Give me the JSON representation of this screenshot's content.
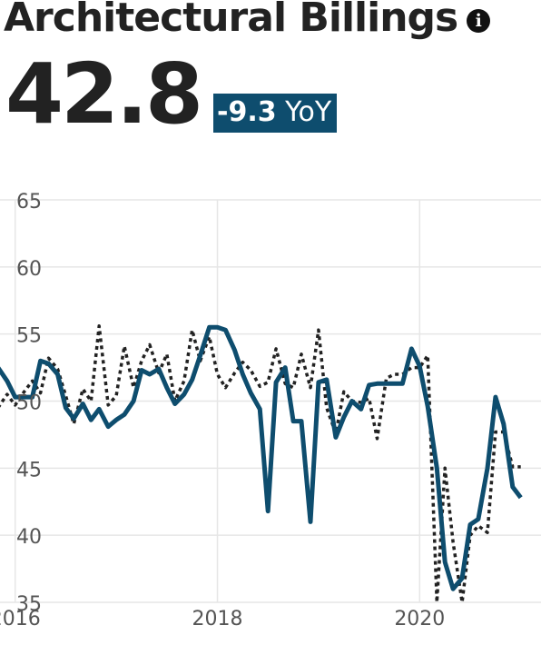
{
  "header": {
    "title": "Architectural Billings",
    "info_icon": "info-circle-icon",
    "value": "42.8",
    "change_value": "-9.3",
    "change_label": "YoY"
  },
  "colors": {
    "primary_line": "#0e4d6e",
    "secondary_line": "#222222",
    "badge_bg": "#0e4d6e",
    "grid": "#e6e6e6"
  },
  "chart_data": {
    "type": "line",
    "title": "",
    "xlabel": "",
    "ylabel": "",
    "ylim": [
      35,
      65
    ],
    "xlim": [
      2015.85,
      2021.2
    ],
    "grid": true,
    "yticks": [
      35,
      40,
      45,
      50,
      55,
      60,
      65
    ],
    "xticks": [
      2016,
      2018,
      2020
    ],
    "series": [
      {
        "style": "solid",
        "x": [
          2015.83,
          2015.92,
          2016.0,
          2016.08,
          2016.17,
          2016.25,
          2016.33,
          2016.42,
          2016.5,
          2016.58,
          2016.67,
          2016.75,
          2016.83,
          2016.92,
          2017.0,
          2017.08,
          2017.17,
          2017.25,
          2017.33,
          2017.42,
          2017.5,
          2017.58,
          2017.67,
          2017.75,
          2017.83,
          2017.92,
          2018.0,
          2018.08,
          2018.17,
          2018.25,
          2018.33,
          2018.42,
          2018.5,
          2018.58,
          2018.67,
          2018.75,
          2018.83,
          2018.92,
          2019.0,
          2019.08,
          2019.17,
          2019.25,
          2019.33,
          2019.42,
          2019.5,
          2019.58,
          2019.67,
          2019.75,
          2019.83,
          2019.92,
          2020.0,
          2020.08,
          2020.17,
          2020.25,
          2020.33,
          2020.42,
          2020.5,
          2020.58,
          2020.67,
          2020.75,
          2020.83,
          2020.92,
          2021.0
        ],
        "y": [
          52.5,
          51.5,
          50.3,
          50.3,
          50.3,
          53.0,
          52.8,
          52.0,
          49.5,
          48.7,
          49.8,
          48.6,
          49.4,
          48.1,
          48.6,
          49.0,
          50.0,
          52.3,
          52.0,
          52.4,
          51.0,
          49.8,
          50.5,
          51.6,
          53.4,
          55.5,
          55.5,
          55.3,
          53.8,
          52.0,
          50.6,
          49.4,
          41.8,
          51.4,
          52.5,
          48.5,
          48.5,
          41.0,
          51.4,
          51.6,
          47.3,
          48.8,
          50.0,
          49.4,
          51.2,
          51.3,
          51.3,
          51.3,
          51.3,
          53.9,
          52.6,
          49.6,
          45.0,
          38.0,
          36.0,
          36.8,
          40.8,
          41.2,
          45.0,
          50.3,
          48.3,
          43.6,
          42.8
        ]
      },
      {
        "style": "dotted",
        "x": [
          2015.83,
          2015.92,
          2016.0,
          2016.08,
          2016.17,
          2016.25,
          2016.33,
          2016.42,
          2016.5,
          2016.58,
          2016.67,
          2016.75,
          2016.83,
          2016.92,
          2017.0,
          2017.08,
          2017.17,
          2017.25,
          2017.33,
          2017.42,
          2017.5,
          2017.58,
          2017.67,
          2017.75,
          2017.83,
          2017.92,
          2018.0,
          2018.08,
          2018.17,
          2018.25,
          2018.33,
          2018.42,
          2018.5,
          2018.58,
          2018.67,
          2018.75,
          2018.83,
          2018.92,
          2019.0,
          2019.08,
          2019.17,
          2019.25,
          2019.33,
          2019.42,
          2019.5,
          2019.58,
          2019.67,
          2019.75,
          2019.83,
          2019.92,
          2020.0,
          2020.08,
          2020.17,
          2020.25,
          2020.33,
          2020.42,
          2020.5,
          2020.58,
          2020.67,
          2020.75,
          2020.83,
          2020.92,
          2021.0
        ],
        "y": [
          49.5,
          50.5,
          49.7,
          50.6,
          51.5,
          50.6,
          53.2,
          52.4,
          50.4,
          48.3,
          50.9,
          50.0,
          55.6,
          49.7,
          50.4,
          54.1,
          51.0,
          53.0,
          54.2,
          52.1,
          53.5,
          50.0,
          51.5,
          55.3,
          53.0,
          54.8,
          52.0,
          51.0,
          52.1,
          52.9,
          52.3,
          51.1,
          51.4,
          53.9,
          51.3,
          51.0,
          53.5,
          51.0,
          55.3,
          49.5,
          47.6,
          50.7,
          50.0,
          49.9,
          50.2,
          47.2,
          51.7,
          52.0,
          52.0,
          52.5,
          52.5,
          53.4,
          35.0,
          45.0,
          39.5,
          35.0,
          40.0,
          40.7,
          40.2,
          47.7,
          47.7,
          45.1,
          45.1
        ]
      }
    ]
  }
}
